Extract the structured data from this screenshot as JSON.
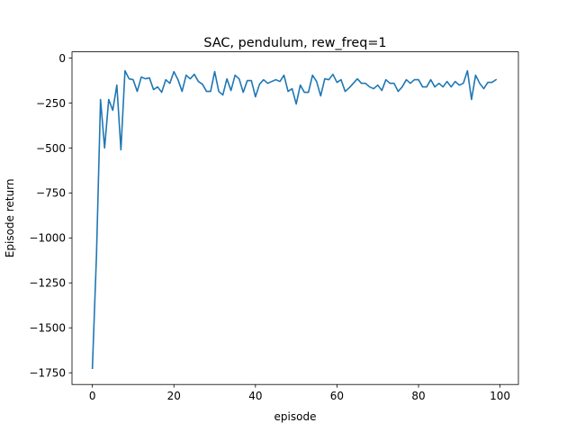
{
  "chart_data": {
    "type": "line",
    "title": "SAC, pendulum, rew_freq=1",
    "xlabel": "episode",
    "ylabel": "Episode return",
    "xlim": [
      -5,
      104.5
    ],
    "ylim": [
      -1815,
      35
    ],
    "xticks": [
      0,
      20,
      40,
      60,
      80,
      100
    ],
    "yticks": [
      0,
      -250,
      -500,
      -750,
      -1000,
      -1250,
      -1500,
      -1750
    ],
    "xtick_labels": [
      "0",
      "20",
      "40",
      "60",
      "80",
      "100"
    ],
    "ytick_labels": [
      "0",
      "−250",
      "−500",
      "−750",
      "−1000",
      "−1250",
      "−1500",
      "−1750"
    ],
    "grid": false,
    "series": [
      {
        "color": "#1f77b4",
        "x": [
          0,
          1,
          2,
          3,
          4,
          5,
          6,
          7,
          8,
          9,
          10,
          11,
          12,
          13,
          14,
          15,
          16,
          17,
          18,
          19,
          20,
          21,
          22,
          23,
          24,
          25,
          26,
          27,
          28,
          29,
          30,
          31,
          32,
          33,
          34,
          35,
          36,
          37,
          38,
          39,
          40,
          41,
          42,
          43,
          44,
          45,
          46,
          47,
          48,
          49,
          50,
          51,
          52,
          53,
          54,
          55,
          56,
          57,
          58,
          59,
          60,
          61,
          62,
          63,
          64,
          65,
          66,
          67,
          68,
          69,
          70,
          71,
          72,
          73,
          74,
          75,
          76,
          77,
          78,
          79,
          80,
          81,
          82,
          83,
          84,
          85,
          86,
          87,
          88,
          89,
          90,
          91,
          92,
          93,
          94,
          95,
          96,
          97,
          98,
          99
        ],
        "y": [
          -1725,
          -1100,
          -230,
          -500,
          -230,
          -290,
          -150,
          -510,
          -70,
          -115,
          -120,
          -185,
          -105,
          -115,
          -110,
          -175,
          -160,
          -190,
          -120,
          -140,
          -75,
          -120,
          -185,
          -95,
          -115,
          -90,
          -130,
          -145,
          -185,
          -185,
          -75,
          -185,
          -205,
          -115,
          -180,
          -95,
          -115,
          -190,
          -125,
          -125,
          -215,
          -145,
          -120,
          -140,
          -130,
          -120,
          -130,
          -95,
          -185,
          -170,
          -255,
          -150,
          -190,
          -190,
          -95,
          -130,
          -210,
          -115,
          -120,
          -90,
          -135,
          -120,
          -185,
          -165,
          -140,
          -115,
          -140,
          -140,
          -160,
          -170,
          -150,
          -180,
          -120,
          -140,
          -140,
          -185,
          -160,
          -120,
          -140,
          -120,
          -120,
          -160,
          -160,
          -120,
          -160,
          -140,
          -160,
          -130,
          -160,
          -130,
          -150,
          -140,
          -70,
          -230,
          -95,
          -140,
          -170,
          -135,
          -135,
          -120
        ]
      }
    ]
  }
}
